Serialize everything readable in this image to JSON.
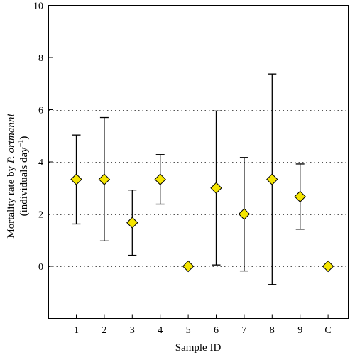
{
  "chart_data": {
    "type": "scatter",
    "title": "",
    "xlabel": "Sample ID",
    "ylabel_line1_prefix": "Mortality rate by ",
    "ylabel_line1_italic": "P. ortmanni",
    "ylabel_line2": "(individuals day",
    "ylabel_line2_sup": "−1",
    "ylabel_line2_suffix": ")",
    "ylim": [
      -2,
      10
    ],
    "yticks": [
      0,
      2,
      4,
      6,
      8,
      10
    ],
    "grid": "dotted horizontal at y = 0, 2, 4, 6, 8",
    "marker": "diamond",
    "marker_color": "#f5e500",
    "categories": [
      "1",
      "2",
      "3",
      "4",
      "5",
      "6",
      "7",
      "8",
      "9",
      "C"
    ],
    "values": [
      3.33,
      3.33,
      1.67,
      3.33,
      0,
      3.0,
      2.0,
      3.33,
      2.67,
      0
    ],
    "error_low": [
      1.62,
      0.97,
      0.42,
      2.38,
      null,
      0.05,
      -0.18,
      -0.7,
      1.42,
      null
    ],
    "error_high": [
      5.03,
      5.7,
      2.92,
      4.28,
      null,
      5.95,
      4.17,
      7.37,
      3.92,
      null
    ]
  }
}
